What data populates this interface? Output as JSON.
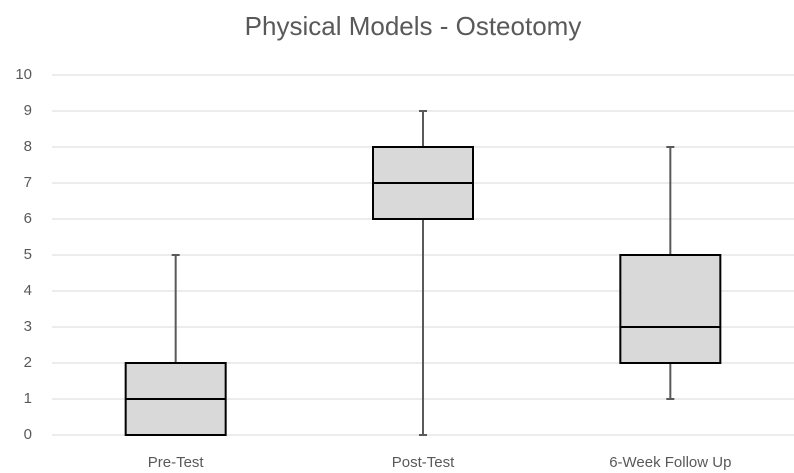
{
  "chart_data": {
    "type": "box",
    "title": "Physical Models - Osteotomy",
    "categories": [
      "Pre-Test",
      "Post-Test",
      "6-Week Follow Up"
    ],
    "min": [
      0,
      0,
      1
    ],
    "q1": [
      0,
      6,
      2
    ],
    "median": [
      1,
      7,
      3
    ],
    "q3": [
      2,
      8,
      5
    ],
    "max": [
      5,
      9,
      8
    ],
    "color": "#d9d9d9",
    "ylim": [
      0,
      10
    ],
    "yticks": [
      0,
      1,
      2,
      3,
      4,
      5,
      6,
      7,
      8,
      9,
      10
    ],
    "grid": true
  }
}
